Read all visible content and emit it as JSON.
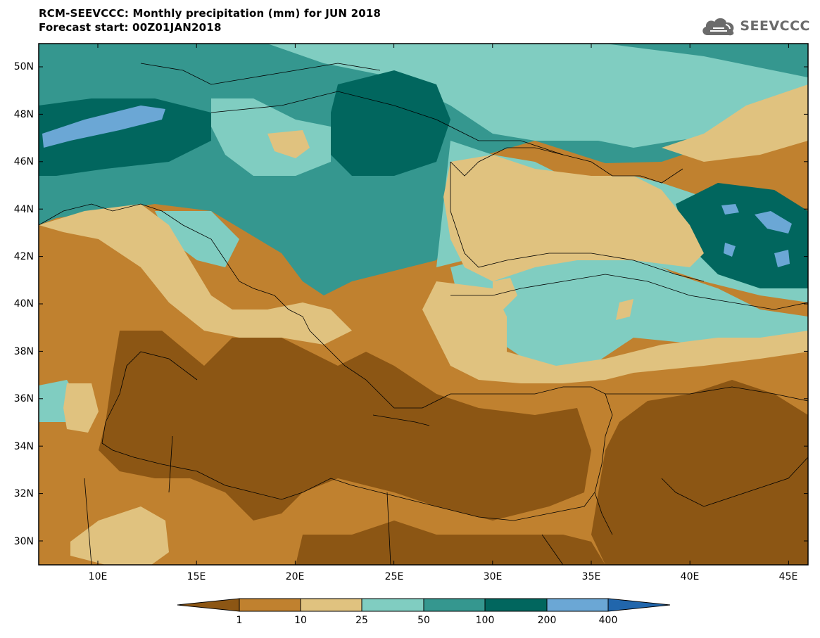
{
  "title": "RCM-SEEVCCC: Monthly precipitation (mm) for JUN 2018",
  "subtitle": "Forecast start: 00Z01JAN2018",
  "logo": {
    "text": "SEEVCCC",
    "icon": "cloud-icon"
  },
  "map": {
    "region": "Southeastern Europe, Mediterranean and Middle East",
    "lat_labels": [
      "50N",
      "48N",
      "46N",
      "44N",
      "42N",
      "40N",
      "38N",
      "36N",
      "34N",
      "32N",
      "30N"
    ],
    "lon_labels": [
      "10E",
      "15E",
      "20E",
      "25E",
      "30E",
      "35E",
      "40E",
      "45E"
    ],
    "lat_range": [
      29,
      51
    ],
    "lon_range": [
      7,
      46
    ]
  },
  "colorbar": {
    "thresholds": [
      "1",
      "10",
      "25",
      "50",
      "100",
      "200",
      "400"
    ],
    "colors": [
      "#8c5614",
      "#c0812f",
      "#e0c27f",
      "#80cdc1",
      "#35978f",
      "#01665e",
      "#6ba7d5",
      "#2166ac"
    ]
  }
}
